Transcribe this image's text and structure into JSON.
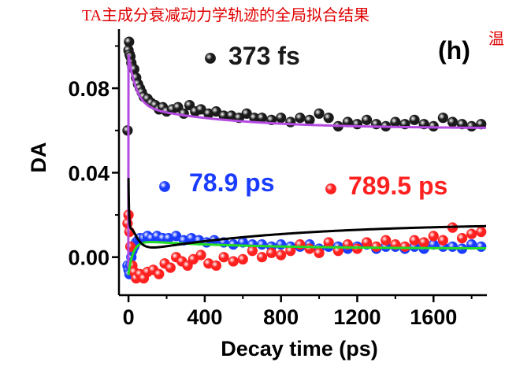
{
  "overlay_caption": "TA主成分衰减动力学轨迹的全局拟合结果",
  "overlay_fragment": "温",
  "colors": {
    "black_series": "#1a1a1a",
    "blue_series": "#1a3cff",
    "red_series": "#ff2020",
    "purple_fit": "#b44be0",
    "green_fit": "#22dd22",
    "black_fit": "#000000",
    "overlay_text": "#e00000"
  },
  "chart_data": {
    "type": "scatter",
    "panel_label": "(h)",
    "xlabel": "Decay time (ps)",
    "ylabel": "DA",
    "xlim": [
      -50,
      1880
    ],
    "ylim": [
      -0.018,
      0.108
    ],
    "x_ticks": [
      0,
      400,
      800,
      1200,
      1600
    ],
    "x_tick_labels": [
      "0",
      "400",
      "800",
      "1200",
      "1600"
    ],
    "y_ticks": [
      0.0,
      0.04,
      0.08
    ],
    "y_tick_labels": [
      "0.00",
      "0.04",
      "0.08"
    ],
    "legend": [
      {
        "label": "373 fs",
        "color": "#1a1a1a",
        "series": "black"
      },
      {
        "label": "78.9 ps",
        "color": "#1a3cff",
        "series": "blue"
      },
      {
        "label": "789.5 ps",
        "color": "#ff2020",
        "series": "red"
      }
    ],
    "series": [
      {
        "name": "373 fs",
        "color": "#1a1a1a",
        "x": [
          -5,
          0,
          3,
          6,
          10,
          15,
          20,
          30,
          40,
          50,
          60,
          70,
          80,
          100,
          120,
          140,
          160,
          180,
          200,
          230,
          260,
          290,
          320,
          350,
          380,
          420,
          460,
          500,
          540,
          580,
          620,
          660,
          700,
          750,
          800,
          850,
          900,
          950,
          1000,
          1050,
          1100,
          1150,
          1200,
          1250,
          1300,
          1350,
          1400,
          1450,
          1500,
          1550,
          1600,
          1650,
          1700,
          1750,
          1800,
          1850
        ],
        "y": [
          0.06,
          0.098,
          0.102,
          0.096,
          0.095,
          0.092,
          0.09,
          0.089,
          0.085,
          0.082,
          0.08,
          0.078,
          0.076,
          0.075,
          0.073,
          0.072,
          0.07,
          0.071,
          0.069,
          0.07,
          0.071,
          0.068,
          0.072,
          0.069,
          0.07,
          0.068,
          0.069,
          0.067,
          0.067,
          0.066,
          0.068,
          0.066,
          0.066,
          0.065,
          0.066,
          0.064,
          0.066,
          0.065,
          0.068,
          0.066,
          0.062,
          0.064,
          0.063,
          0.065,
          0.063,
          0.062,
          0.064,
          0.063,
          0.065,
          0.063,
          0.062,
          0.066,
          0.064,
          0.063,
          0.062,
          0.063
        ]
      },
      {
        "name": "78.9 ps",
        "color": "#1a3cff",
        "x": [
          -5,
          0,
          5,
          10,
          15,
          20,
          30,
          40,
          50,
          60,
          80,
          100,
          120,
          150,
          180,
          210,
          250,
          290,
          330,
          370,
          410,
          450,
          500,
          550,
          600,
          650,
          700,
          750,
          800,
          850,
          900,
          950,
          1000,
          1050,
          1100,
          1150,
          1200,
          1250,
          1300,
          1350,
          1400,
          1450,
          1500,
          1550,
          1600,
          1650,
          1700,
          1750,
          1800,
          1850
        ],
        "y": [
          -0.004,
          -0.006,
          -0.008,
          -0.004,
          0.0,
          0.003,
          0.005,
          0.007,
          0.008,
          0.009,
          0.009,
          0.01,
          0.009,
          0.01,
          0.009,
          0.009,
          0.01,
          0.008,
          0.009,
          0.008,
          0.007,
          0.008,
          0.007,
          0.006,
          0.007,
          0.006,
          0.006,
          0.005,
          0.006,
          0.005,
          0.005,
          0.006,
          0.004,
          0.005,
          0.005,
          0.004,
          0.005,
          0.006,
          0.004,
          0.005,
          0.005,
          0.004,
          0.005,
          0.004,
          0.006,
          0.005,
          0.005,
          0.004,
          0.006,
          0.005
        ]
      },
      {
        "name": "789.5 ps",
        "color": "#ff2020",
        "x": [
          -5,
          0,
          5,
          10,
          20,
          30,
          40,
          60,
          80,
          100,
          130,
          160,
          190,
          220,
          250,
          280,
          310,
          340,
          380,
          420,
          460,
          500,
          550,
          600,
          650,
          700,
          750,
          800,
          850,
          900,
          950,
          1000,
          1050,
          1100,
          1150,
          1200,
          1250,
          1300,
          1350,
          1400,
          1450,
          1500,
          1550,
          1600,
          1650,
          1700,
          1750,
          1800,
          1850
        ],
        "y": [
          0.016,
          0.02,
          0.012,
          0.005,
          -0.004,
          -0.007,
          -0.01,
          -0.008,
          -0.01,
          -0.007,
          -0.006,
          -0.008,
          -0.003,
          -0.005,
          0.0,
          -0.002,
          -0.004,
          -0.001,
          0.001,
          -0.003,
          -0.004,
          0.0,
          -0.002,
          -0.001,
          0.003,
          0.0,
          0.002,
          0.001,
          0.003,
          0.006,
          0.004,
          0.002,
          0.007,
          0.003,
          0.006,
          0.004,
          0.007,
          0.005,
          0.008,
          0.006,
          0.005,
          0.008,
          0.007,
          0.01,
          0.008,
          0.014,
          0.009,
          0.011,
          0.012
        ]
      }
    ],
    "fits": [
      {
        "name": "373 fs fit",
        "color": "#b44be0",
        "model": "biexp",
        "y0": 0.061,
        "a1": 0.024,
        "t1": 40,
        "a2": 0.011,
        "t2": 500,
        "rise_from": -0.005
      },
      {
        "name": "78.9 ps fit",
        "color": "#22dd22",
        "model": "risedecay",
        "y0": 0.004,
        "a_rise": -0.016,
        "t_rise": 25,
        "a_decay": 0.004,
        "t_decay": 600
      },
      {
        "name": "789.5 ps fit",
        "color": "#000000",
        "model": "slowrise",
        "y0": 0.016,
        "a_fast": 0.035,
        "t_fast": 30,
        "a_slow": -0.014,
        "t_slow": 789.5
      }
    ]
  }
}
